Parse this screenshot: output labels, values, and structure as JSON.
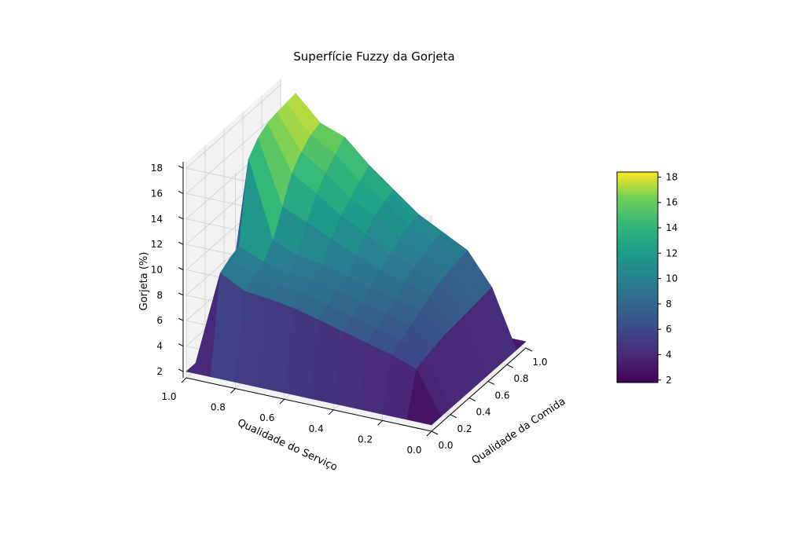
{
  "chart_data": {
    "type": "surface3d",
    "title": "Superfície Fuzzy da Gorjeta",
    "xlabel": "Qualidade da Comida",
    "ylabel": "Qualidade do Serviço",
    "zlabel": "Gorjeta (%)",
    "xlim": [
      0,
      1
    ],
    "ylim": [
      0,
      1
    ],
    "zlim": [
      1.5,
      18.5
    ],
    "x": [
      0.0,
      0.1,
      0.2,
      0.3,
      0.4,
      0.5,
      0.6,
      0.7,
      0.8,
      0.9,
      1.0
    ],
    "y": [
      0.0,
      0.1,
      0.2,
      0.3,
      0.4,
      0.5,
      0.6,
      0.7,
      0.8,
      0.9,
      1.0
    ],
    "z": [
      [
        2,
        2,
        2,
        2,
        2,
        2,
        2,
        2,
        2,
        2,
        2
      ],
      [
        2,
        5.3,
        5.6,
        5.8,
        6.0,
        6.1,
        6.2,
        6.3,
        6.4,
        6.5,
        2
      ],
      [
        2,
        6.0,
        6.5,
        7.0,
        7.5,
        8.0,
        8.3,
        8.6,
        8.8,
        9.0,
        2
      ],
      [
        2,
        6.5,
        7.0,
        7.5,
        8.0,
        8.7,
        9.2,
        9.6,
        9.9,
        10.0,
        2
      ],
      [
        2,
        7.0,
        7.5,
        8.0,
        8.5,
        9.2,
        9.8,
        10.3,
        10.7,
        11.0,
        2
      ],
      [
        2,
        7.5,
        8.0,
        8.5,
        9.0,
        10.0,
        11.0,
        11.7,
        12.2,
        12.5,
        2
      ],
      [
        2,
        8.0,
        8.5,
        9.0,
        9.5,
        10.8,
        12.0,
        12.7,
        13.4,
        14.0,
        2
      ],
      [
        2,
        8.3,
        8.7,
        9.0,
        9.8,
        11.7,
        13.3,
        14.3,
        15.1,
        15.8,
        2
      ],
      [
        2,
        8.5,
        9.0,
        9.5,
        10.5,
        12.5,
        14.5,
        15.5,
        16.2,
        16.5,
        2
      ],
      [
        2,
        9.5,
        10.0,
        10.3,
        16.5,
        17.5,
        18.0,
        18.2,
        18.3,
        18.4,
        2
      ],
      [
        2,
        2,
        2,
        2,
        2,
        2,
        2,
        2,
        2,
        2,
        2
      ]
    ],
    "xticks": [
      "0.0",
      "0.2",
      "0.4",
      "0.6",
      "0.8",
      "1.0"
    ],
    "yticks": [
      "0.0",
      "0.2",
      "0.4",
      "0.6",
      "0.8",
      "1.0"
    ],
    "zticks": [
      "2",
      "4",
      "6",
      "8",
      "10",
      "12",
      "14",
      "16",
      "18"
    ],
    "colormap": "viridis",
    "colorbar": {
      "range": [
        1.8,
        18.4
      ],
      "ticks": [
        "2",
        "4",
        "6",
        "8",
        "10",
        "12",
        "14",
        "16",
        "18"
      ]
    },
    "grid": true,
    "pane_color": "#f2f2f2",
    "grid_color": "#d0d0d0"
  }
}
